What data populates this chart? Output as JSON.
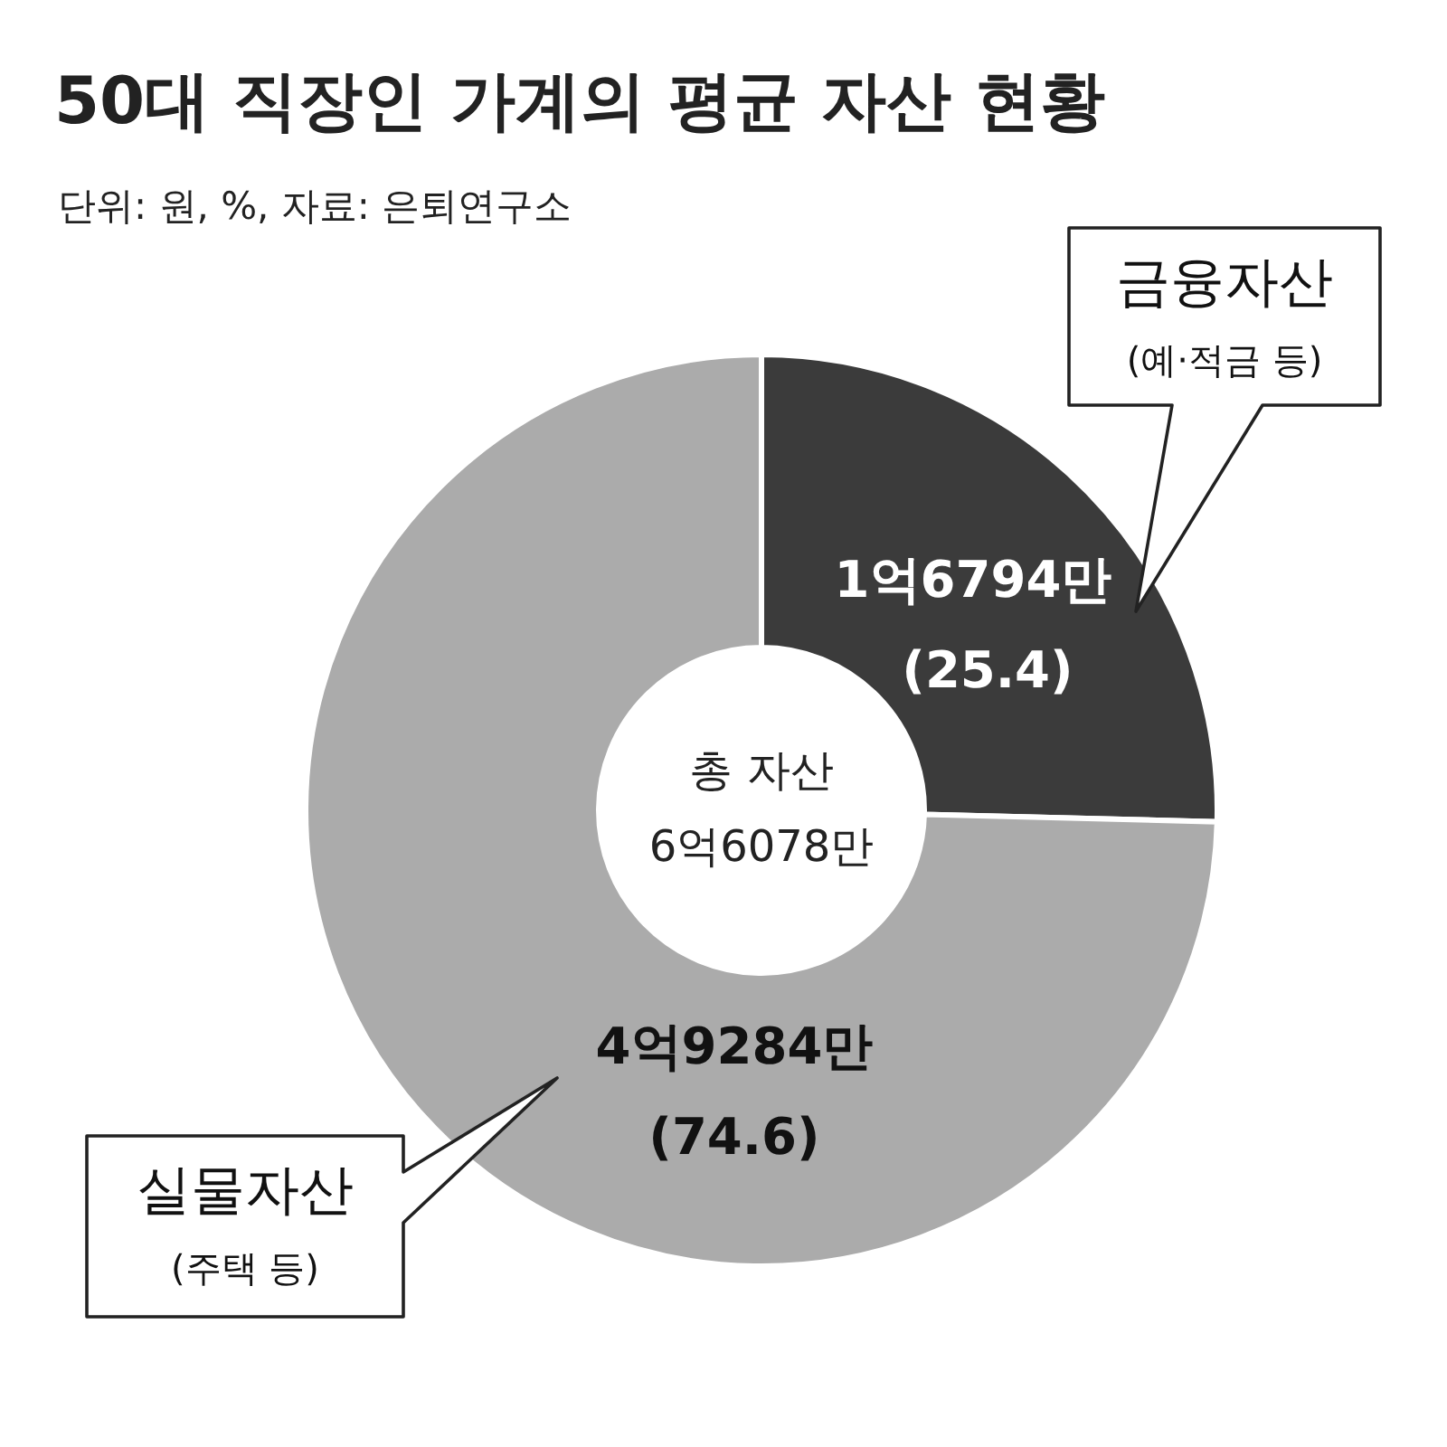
{
  "chart_data": {
    "type": "donut",
    "title": "50대 직장인 가계의 평균 자산 현황",
    "subtitle": "단위: 원, %, 자료: 은퇴연구소",
    "categories": [
      "금융자산\n(예·적금 등)",
      "실물자산\n(주택 등)"
    ],
    "values": [
      25.4,
      74.6
    ],
    "colors": [
      "#3b3b3b",
      "#ababab"
    ],
    "value_labels": [
      "1억6794만\n(25.4)",
      "4억9284만\n(74.6)"
    ],
    "annotations": [
      "총 자산\n6억6078만"
    ],
    "legend": false
  }
}
